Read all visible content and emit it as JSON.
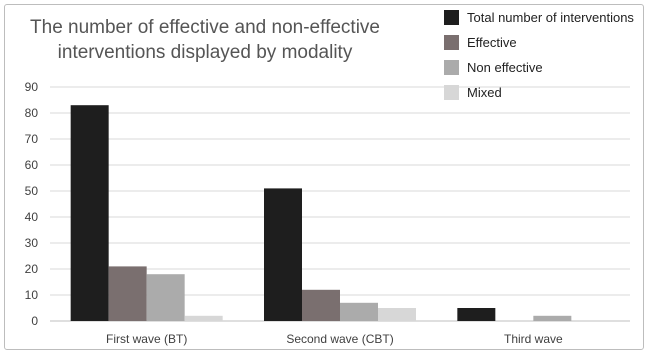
{
  "chart_data": {
    "type": "bar",
    "title_lines": [
      "The number of effective and non-effective",
      "interventions displayed by modality"
    ],
    "categories": [
      "First wave (BT)",
      "Second wave (CBT)",
      "Third wave"
    ],
    "series": [
      {
        "name": "Total number of interventions",
        "color": "#1e1e1e",
        "values": [
          83,
          51,
          5
        ]
      },
      {
        "name": "Effective",
        "color": "#7a6f6f",
        "values": [
          21,
          12,
          0
        ]
      },
      {
        "name": "Non effective",
        "color": "#ababab",
        "values": [
          18,
          7,
          2
        ]
      },
      {
        "name": "Mixed",
        "color": "#d7d7d7",
        "values": [
          2,
          5,
          0
        ]
      }
    ],
    "yticks": [
      0,
      10,
      20,
      30,
      40,
      50,
      60,
      70,
      80,
      90
    ],
    "ylim": [
      0,
      90
    ],
    "grid": true,
    "legend_position": "top-right"
  }
}
